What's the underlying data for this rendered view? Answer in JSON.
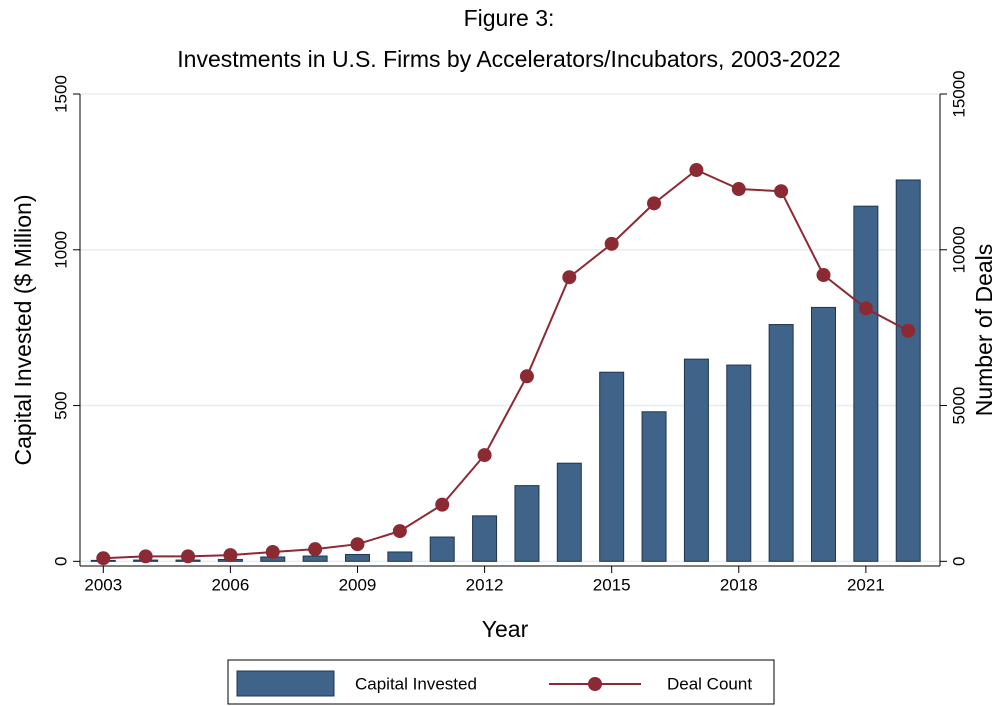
{
  "chart_data": {
    "type": "bar_line",
    "title": "Figure 3:",
    "subtitle": "Investments in U.S. Firms by Accelerators/Incubators, 2003-2022",
    "x_label": "Year",
    "y_label": "Capital Invested ($ Million)",
    "y2_label": "Number of Deals",
    "x": [
      2003,
      2004,
      2005,
      2006,
      2007,
      2008,
      2009,
      2010,
      2011,
      2012,
      2013,
      2014,
      2015,
      2016,
      2017,
      2018,
      2019,
      2020,
      2021,
      2022
    ],
    "series": [
      {
        "name": "Capital Invested",
        "type": "bar",
        "color": "#3f6389",
        "axis": "y",
        "values": [
          3,
          4,
          4,
          6,
          14,
          17,
          22,
          30,
          78,
          146,
          243,
          315,
          607,
          480,
          649,
          630,
          760,
          815,
          1140,
          1224
        ]
      },
      {
        "name": "Deal Count",
        "type": "line",
        "color": "#8c2a33",
        "axis": "y2",
        "values": [
          100,
          160,
          160,
          200,
          300,
          390,
          550,
          970,
          1820,
          3410,
          5940,
          9120,
          10190,
          11490,
          12560,
          11950,
          11880,
          9190,
          8120,
          7400
        ]
      }
    ],
    "xlim": [
      2002.45,
      2022.75
    ],
    "xticks": [
      2003,
      2006,
      2009,
      2012,
      2015,
      2018,
      2021
    ],
    "ylim": [
      -15,
      1500
    ],
    "yticks": [
      0,
      500,
      1000,
      1500
    ],
    "y2lim": [
      -150,
      15000
    ],
    "y2ticks": [
      0,
      5000,
      10000,
      15000
    ],
    "grid": true,
    "legend": "bottom"
  }
}
